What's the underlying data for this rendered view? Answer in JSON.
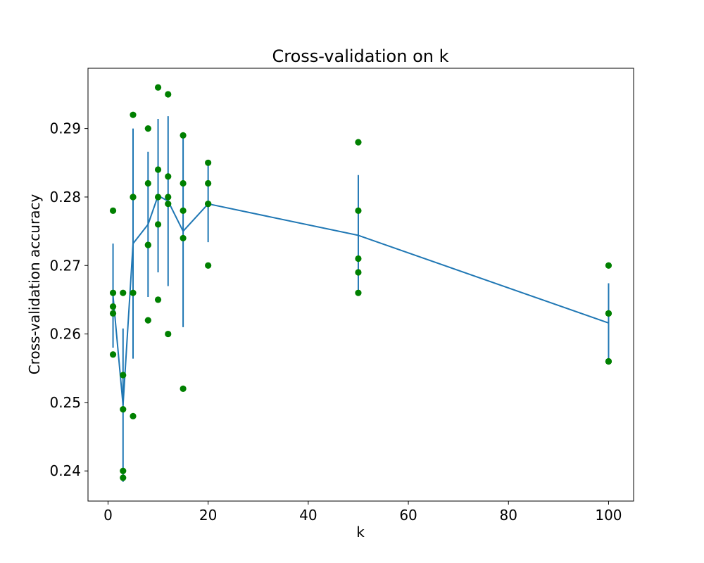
{
  "colors": {
    "background": "#ffffff",
    "line": "#1f77b4",
    "points": "#008000",
    "axis": "#000000"
  },
  "chart_data": {
    "type": "scatter",
    "title": "Cross-validation on k",
    "xlabel": "k",
    "ylabel": "Cross-validation accuracy",
    "xlim": [
      -4,
      105
    ],
    "ylim": [
      0.2356,
      0.2988
    ],
    "xticks": [
      0,
      20,
      40,
      60,
      80,
      100
    ],
    "xtick_labels": [
      "0",
      "20",
      "40",
      "60",
      "80",
      "100"
    ],
    "yticks": [
      0.24,
      0.25,
      0.26,
      0.27,
      0.28,
      0.29
    ],
    "ytick_labels": [
      "0.24",
      "0.25",
      "0.26",
      "0.27",
      "0.28",
      "0.29"
    ],
    "grid": false,
    "points": [
      {
        "k": 1,
        "accuracies": [
          0.278,
          0.266,
          0.264,
          0.263,
          0.257
        ]
      },
      {
        "k": 3,
        "accuracies": [
          0.266,
          0.254,
          0.249,
          0.24,
          0.239
        ]
      },
      {
        "k": 5,
        "accuracies": [
          0.292,
          0.28,
          0.266,
          0.28,
          0.248
        ]
      },
      {
        "k": 8,
        "accuracies": [
          0.29,
          0.282,
          0.273,
          0.262,
          0.273
        ]
      },
      {
        "k": 10,
        "accuracies": [
          0.296,
          0.284,
          0.28,
          0.276,
          0.265
        ]
      },
      {
        "k": 12,
        "accuracies": [
          0.295,
          0.283,
          0.28,
          0.279,
          0.26
        ]
      },
      {
        "k": 15,
        "accuracies": [
          0.289,
          0.282,
          0.278,
          0.274,
          0.252
        ]
      },
      {
        "k": 20,
        "accuracies": [
          0.285,
          0.282,
          0.279,
          0.279,
          0.27
        ]
      },
      {
        "k": 50,
        "accuracies": [
          0.288,
          0.278,
          0.271,
          0.269,
          0.266
        ]
      },
      {
        "k": 100,
        "accuracies": [
          0.27,
          0.263,
          0.263,
          0.256,
          0.256
        ]
      }
    ],
    "mean_line": {
      "k": [
        1,
        3,
        5,
        8,
        10,
        12,
        15,
        20,
        50,
        100
      ],
      "mean": [
        0.2656,
        0.2496,
        0.2732,
        0.276,
        0.2802,
        0.2794,
        0.275,
        0.279,
        0.2744,
        0.2616
      ],
      "std": [
        0.0076,
        0.0112,
        0.0168,
        0.0106,
        0.0112,
        0.0124,
        0.014,
        0.0056,
        0.0088,
        0.0058
      ]
    }
  }
}
